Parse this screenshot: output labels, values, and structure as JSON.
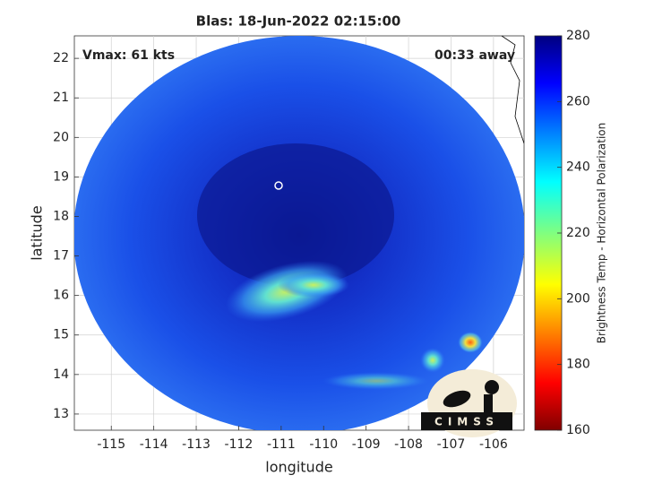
{
  "chart_data": {
    "type": "image",
    "title": "Blas: 18-Jun-2022 02:15:00",
    "xlabel": "longitude",
    "ylabel": "latitude",
    "xlim": [
      -115.87,
      -105.28
    ],
    "ylim": [
      12.59,
      22.57
    ],
    "xticks": [
      -115,
      -114,
      -113,
      -112,
      -111,
      -110,
      -109,
      -108,
      -107,
      -106
    ],
    "yticks": [
      13,
      14,
      15,
      16,
      17,
      18,
      19,
      20,
      21,
      22
    ],
    "grid": true,
    "annotations": [
      "Vmax: 61 kts",
      "00:33 away"
    ],
    "logo": "CIMSS",
    "colorbar": {
      "label": "Brightness Temp - Horizontal Polarization",
      "lim": [
        160,
        280
      ],
      "ticks": [
        160,
        180,
        200,
        220,
        240,
        260,
        280
      ]
    }
  }
}
